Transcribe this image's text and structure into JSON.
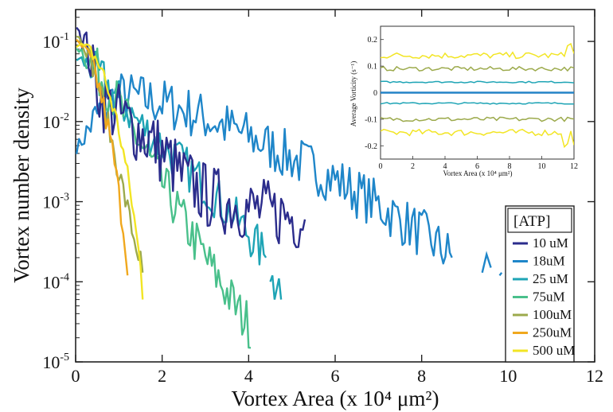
{
  "chart_data": [
    {
      "type": "line",
      "xlabel": "Vortex Area (x 10⁴ μm²)",
      "ylabel": "Vortex number density",
      "xlim": [
        0,
        12
      ],
      "ylim": [
        1e-05,
        0.25
      ],
      "yscale": "log",
      "x_ticks": [
        "0",
        "2",
        "4",
        "6",
        "8",
        "10",
        "12"
      ],
      "y_ticks": [
        {
          "base": "10",
          "exp": "-5",
          "value": 1e-05
        },
        {
          "base": "10",
          "exp": "-4",
          "value": 0.0001
        },
        {
          "base": "10",
          "exp": "-3",
          "value": 0.001
        },
        {
          "base": "10",
          "exp": "-2",
          "value": 0.01
        },
        {
          "base": "10",
          "exp": "-1",
          "value": 0.1
        }
      ],
      "legend": {
        "title": "[ATP]",
        "placement": "bottom-right"
      },
      "series": [
        {
          "name": "10 uM",
          "color": "#2b2c8c",
          "points": [
            [
              0.02,
              0.17
            ],
            [
              0.15,
              0.12
            ],
            [
              0.3,
              0.07
            ],
            [
              0.45,
              0.035
            ],
            [
              0.6,
              0.02
            ],
            [
              0.8,
              0.015
            ],
            [
              1.0,
              0.012
            ],
            [
              1.2,
              0.01
            ],
            [
              1.4,
              0.008
            ],
            [
              1.6,
              0.0065
            ],
            [
              1.8,
              0.0055
            ],
            [
              2.0,
              0.004
            ],
            [
              2.2,
              0.0032
            ],
            [
              2.4,
              0.0022
            ],
            [
              2.6,
              0.0018
            ],
            [
              2.8,
              0.0015
            ],
            [
              3.0,
              0.0012
            ],
            [
              3.2,
              0.0011
            ],
            [
              3.4,
              0.001
            ],
            [
              3.6,
              0.00095
            ],
            [
              3.8,
              0.0009
            ],
            [
              4.0,
              0.0008
            ],
            [
              4.2,
              0.0008
            ],
            [
              4.4,
              0.00075
            ],
            [
              4.6,
              0.0007
            ],
            [
              4.8,
              0.0007
            ],
            [
              5.0,
              0.00065
            ],
            [
              5.2,
              0.0006
            ],
            [
              5.3,
              0.0006
            ]
          ],
          "noise": 0.42
        },
        {
          "name": "18uM",
          "color": "#1f86c9",
          "points": [
            [
              0.02,
              0.0045
            ],
            [
              0.2,
              0.0065
            ],
            [
              0.4,
              0.01
            ],
            [
              0.6,
              0.014
            ],
            [
              0.8,
              0.018
            ],
            [
              1.0,
              0.021
            ],
            [
              1.4,
              0.02
            ],
            [
              2.0,
              0.017
            ],
            [
              2.5,
              0.014
            ],
            [
              3.0,
              0.011
            ],
            [
              3.5,
              0.0085
            ],
            [
              4.0,
              0.0065
            ],
            [
              4.5,
              0.0048
            ],
            [
              5.0,
              0.0035
            ],
            [
              5.5,
              0.0026
            ],
            [
              6.0,
              0.0019
            ],
            [
              6.5,
              0.0013
            ],
            [
              7.0,
              0.0009
            ],
            [
              7.5,
              0.0006
            ],
            [
              8.0,
              0.0004
            ],
            [
              8.5,
              0.00025
            ],
            [
              8.7,
              0.0002
            ]
          ],
          "extra_segments": [
            [
              [
                9.4,
                0.00013
              ],
              [
                9.5,
                0.00022
              ],
              [
                9.6,
                0.00015
              ]
            ],
            [
              [
                9.8,
                0.00012
              ],
              [
                9.85,
                0.00013
              ]
            ],
            [
              [
                10.1,
                0.00012
              ],
              [
                10.12,
                0.00011
              ]
            ]
          ],
          "noise": 0.32
        },
        {
          "name": "25 uM",
          "color": "#1ea4b5",
          "points": [
            [
              0.02,
              0.06
            ],
            [
              0.2,
              0.055
            ],
            [
              0.4,
              0.045
            ],
            [
              0.6,
              0.035
            ],
            [
              0.8,
              0.025
            ],
            [
              1.0,
              0.018
            ],
            [
              1.3,
              0.012
            ],
            [
              1.6,
              0.008
            ],
            [
              2.0,
              0.005
            ],
            [
              2.4,
              0.0032
            ],
            [
              2.8,
              0.002
            ],
            [
              3.2,
              0.0012
            ],
            [
              3.6,
              0.0007
            ],
            [
              4.0,
              0.0004
            ],
            [
              4.2,
              0.00028
            ],
            [
              4.4,
              0.0002
            ]
          ],
          "extra_segments": [
            [
              [
                4.5,
                0.0001
              ],
              [
                4.55,
                0.00012
              ],
              [
                4.6,
                6e-05
              ],
              [
                4.7,
                0.00011
              ],
              [
                4.75,
                6e-05
              ]
            ]
          ],
          "noise": 0.28
        },
        {
          "name": "75uM",
          "color": "#49c08b",
          "points": [
            [
              0.02,
              0.09
            ],
            [
              0.2,
              0.07
            ],
            [
              0.4,
              0.05
            ],
            [
              0.6,
              0.035
            ],
            [
              0.8,
              0.024
            ],
            [
              1.0,
              0.016
            ],
            [
              1.2,
              0.01
            ],
            [
              1.4,
              0.0065
            ],
            [
              1.6,
              0.0042
            ],
            [
              1.8,
              0.0027
            ],
            [
              2.0,
              0.0017
            ],
            [
              2.2,
              0.0011
            ],
            [
              2.4,
              0.0007
            ],
            [
              2.6,
              0.00045
            ],
            [
              2.8,
              0.0003
            ],
            [
              3.0,
              0.0002
            ],
            [
              3.2,
              0.00013
            ],
            [
              3.4,
              9e-05
            ],
            [
              3.6,
              6e-05
            ],
            [
              3.8,
              4e-05
            ],
            [
              4.0,
              3e-05
            ],
            [
              4.05,
              1.5e-05
            ]
          ],
          "noise": 0.3
        },
        {
          "name": "100uM",
          "color": "#9caa4c",
          "points": [
            [
              0.02,
              0.12
            ],
            [
              0.15,
              0.1
            ],
            [
              0.3,
              0.07
            ],
            [
              0.45,
              0.04
            ],
            [
              0.6,
              0.02
            ],
            [
              0.75,
              0.009
            ],
            [
              0.9,
              0.004
            ],
            [
              1.05,
              0.0018
            ],
            [
              1.2,
              0.0008
            ],
            [
              1.35,
              0.00035
            ],
            [
              1.5,
              0.00018
            ],
            [
              1.55,
              0.00013
            ]
          ],
          "noise": 0.16
        },
        {
          "name": "250uM",
          "color": "#f0a81e",
          "points": [
            [
              0.02,
              0.1
            ],
            [
              0.15,
              0.085
            ],
            [
              0.3,
              0.065
            ],
            [
              0.45,
              0.04
            ],
            [
              0.6,
              0.02
            ],
            [
              0.75,
              0.008
            ],
            [
              0.9,
              0.003
            ],
            [
              1.0,
              0.0012
            ],
            [
              1.1,
              0.0005
            ],
            [
              1.18,
              0.0002
            ],
            [
              1.2,
              0.00012
            ]
          ],
          "noise": 0.18
        },
        {
          "name": "500 uM",
          "color": "#f2e524",
          "points": [
            [
              0.02,
              0.09
            ],
            [
              0.2,
              0.085
            ],
            [
              0.4,
              0.07
            ],
            [
              0.6,
              0.045
            ],
            [
              0.8,
              0.02
            ],
            [
              1.0,
              0.008
            ],
            [
              1.15,
              0.003
            ],
            [
              1.3,
              0.001
            ],
            [
              1.4,
              0.0004
            ],
            [
              1.5,
              0.00015
            ],
            [
              1.55,
              6e-05
            ]
          ],
          "noise": 0.14
        }
      ]
    },
    {
      "type": "line",
      "xlabel": "Vortex Area (x 10⁴ μm²)",
      "ylabel": "Average Vorticity (s⁻¹)",
      "xlim": [
        0,
        12
      ],
      "ylim": [
        -0.25,
        0.25
      ],
      "x_ticks": [
        "0",
        "2",
        "4",
        "6",
        "8",
        "10",
        "12"
      ],
      "y_ticks": [
        "-0.2",
        "-0.1",
        "0",
        "0.1",
        "0.2"
      ],
      "series": [
        {
          "color": "#f2e524",
          "values": [
            0.14,
            -0.15
          ],
          "noise": 0.012
        },
        {
          "color": "#9caa4c",
          "values": [
            0.09,
            -0.1
          ],
          "noise": 0.008
        },
        {
          "color": "#1ea4b5",
          "values": [
            0.04,
            -0.04
          ],
          "noise": 0.003
        },
        {
          "color": "#2b2c8c",
          "values": [
            0.0
          ],
          "noise": 0.0
        },
        {
          "color": "#1f86c9",
          "values": [
            0.0
          ],
          "noise": 0.0
        }
      ]
    }
  ]
}
